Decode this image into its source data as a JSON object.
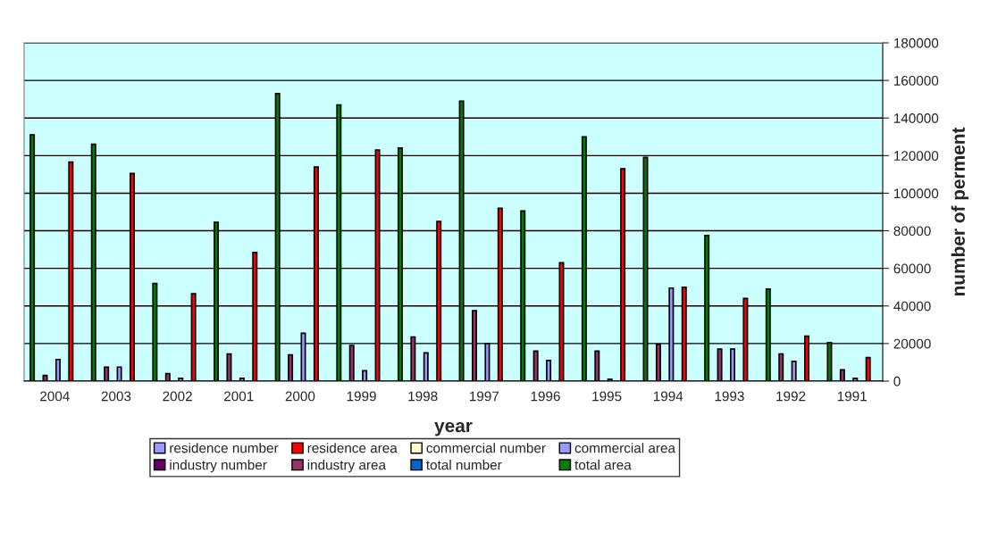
{
  "chart_data": {
    "type": "bar",
    "xlabel": "year",
    "ylabel": "number of perment",
    "categories": [
      "2004",
      "2003",
      "2002",
      "2001",
      "2000",
      "1999",
      "1998",
      "1997",
      "1996",
      "1995",
      "1994",
      "1993",
      "1992",
      "1991"
    ],
    "series": [
      {
        "name": "residence number",
        "color": "#9999ff",
        "values": [
          null,
          null,
          null,
          null,
          null,
          null,
          null,
          null,
          null,
          null,
          null,
          null,
          null,
          null
        ]
      },
      {
        "name": "residence area",
        "color": "#ff0000",
        "values": [
          116500,
          110500,
          46500,
          68500,
          114000,
          123000,
          85000,
          92000,
          63000,
          113000,
          50000,
          44000,
          24000,
          12500
        ]
      },
      {
        "name": "commercial number",
        "color": "#ffffcc",
        "values": [
          null,
          null,
          null,
          null,
          null,
          null,
          null,
          null,
          null,
          null,
          null,
          null,
          null,
          null
        ]
      },
      {
        "name": "commercial area",
        "color": "#9999ff",
        "values": [
          11500,
          7500,
          1500,
          1500,
          25500,
          5500,
          15000,
          20000,
          11000,
          1000,
          49500,
          17000,
          10500,
          1500
        ]
      },
      {
        "name": "industry number",
        "color": "#660066",
        "values": [
          null,
          null,
          null,
          null,
          null,
          null,
          null,
          null,
          null,
          null,
          null,
          null,
          null,
          null
        ]
      },
      {
        "name": "industry area",
        "color": "#993366",
        "values": [
          3000,
          7500,
          4000,
          14500,
          14000,
          19000,
          23500,
          37500,
          16000,
          16000,
          19500,
          17000,
          14500,
          6000
        ]
      },
      {
        "name": "total number",
        "color": "#0066cc",
        "values": [
          null,
          null,
          null,
          null,
          null,
          null,
          null,
          null,
          null,
          null,
          null,
          null,
          null,
          null
        ]
      },
      {
        "name": "total area",
        "color": "#008000",
        "values": [
          131000,
          126000,
          52000,
          84500,
          153000,
          147000,
          124000,
          149000,
          90500,
          130000,
          119000,
          77500,
          49000,
          20500
        ]
      }
    ],
    "ylim": [
      0,
      180000
    ],
    "yticks": [
      0,
      20000,
      40000,
      60000,
      80000,
      100000,
      120000,
      140000,
      160000,
      180000
    ],
    "grid": "y",
    "legend": "bottom"
  }
}
